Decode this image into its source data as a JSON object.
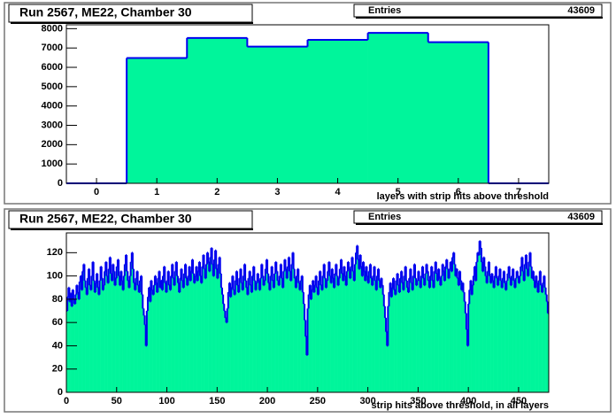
{
  "chart_data": [
    {
      "type": "histogram",
      "title": "Run 2567, ME22, Chamber 30",
      "stats": {
        "label": "Entries",
        "value": 43609
      },
      "xlabel": "layers with strip hits above threshold",
      "bins": [
        -0.5,
        0.5,
        1.5,
        2.5,
        3.5,
        4.5,
        5.5,
        6.5,
        7.5
      ],
      "values": [
        0,
        6480,
        7520,
        7070,
        7420,
        7780,
        7300,
        0
      ],
      "color": "#00f59b",
      "line_color": "#0000ee",
      "xlim": [
        -0.5,
        7.5
      ],
      "xticks": [
        0,
        1,
        2,
        3,
        4,
        5,
        6,
        7
      ],
      "ylim": [
        0,
        8200
      ],
      "yticks": [
        0,
        1000,
        2000,
        3000,
        4000,
        5000,
        6000,
        7000,
        8000
      ]
    },
    {
      "type": "histogram",
      "title": "Run 2567, ME22, Chamber 30",
      "stats": {
        "label": "Entries",
        "value": 43609
      },
      "xlabel": "strip hits above threshold, in all layers",
      "bins": [
        0,
        1,
        2,
        3,
        4,
        5,
        6,
        7,
        8,
        9,
        10,
        11,
        12,
        13,
        14,
        15,
        16,
        17,
        18,
        19,
        20,
        21,
        22,
        23,
        24,
        25,
        26,
        27,
        28,
        29,
        30,
        31,
        32,
        33,
        34,
        35,
        36,
        37,
        38,
        39,
        40,
        41,
        42,
        43,
        44,
        45,
        46,
        47,
        48,
        49,
        50,
        51,
        52,
        53,
        54,
        55,
        56,
        57,
        58,
        59,
        60,
        61,
        62,
        63,
        64,
        65,
        66,
        67,
        68,
        69,
        70,
        71,
        72,
        73,
        74,
        75,
        76,
        77,
        78,
        79,
        80,
        81,
        82,
        83,
        84,
        85,
        86,
        87,
        88,
        89,
        90,
        91,
        92,
        93,
        94,
        95,
        96,
        97,
        98,
        99,
        100,
        101,
        102,
        103,
        104,
        105,
        106,
        107,
        108,
        109,
        110,
        111,
        112,
        113,
        114,
        115,
        116,
        117,
        118,
        119,
        120,
        121,
        122,
        123,
        124,
        125,
        126,
        127,
        128,
        129,
        130,
        131,
        132,
        133,
        134,
        135,
        136,
        137,
        138,
        139,
        140,
        141,
        142,
        143,
        144,
        145,
        146,
        147,
        148,
        149,
        150,
        151,
        152,
        153,
        154,
        155,
        156,
        157,
        158,
        159,
        160,
        161,
        162,
        163,
        164,
        165,
        166,
        167,
        168,
        169,
        170,
        171,
        172,
        173,
        174,
        175,
        176,
        177,
        178,
        179,
        180,
        181,
        182,
        183,
        184,
        185,
        186,
        187,
        188,
        189,
        190,
        191,
        192,
        193,
        194,
        195,
        196,
        197,
        198,
        199,
        200,
        201,
        202,
        203,
        204,
        205,
        206,
        207,
        208,
        209,
        210,
        211,
        212,
        213,
        214,
        215,
        216,
        217,
        218,
        219,
        220,
        221,
        222,
        223,
        224,
        225,
        226,
        227,
        228,
        229,
        230,
        231,
        232,
        233,
        234,
        235,
        236,
        237,
        238,
        239,
        240,
        241,
        242,
        243,
        244,
        245,
        246,
        247,
        248,
        249,
        250,
        251,
        252,
        253,
        254,
        255,
        256,
        257,
        258,
        259,
        260,
        261,
        262,
        263,
        264,
        265,
        266,
        267,
        268,
        269,
        270,
        271,
        272,
        273,
        274,
        275,
        276,
        277,
        278,
        279,
        280,
        281,
        282,
        283,
        284,
        285,
        286,
        287,
        288,
        289,
        290,
        291,
        292,
        293,
        294,
        295,
        296,
        297,
        298,
        299,
        300,
        301,
        302,
        303,
        304,
        305,
        306,
        307,
        308,
        309,
        310,
        311,
        312,
        313,
        314,
        315,
        316,
        317,
        318,
        319,
        320,
        321,
        322,
        323,
        324,
        325,
        326,
        327,
        328,
        329,
        330,
        331,
        332,
        333,
        334,
        335,
        336,
        337,
        338,
        339,
        340,
        341,
        342,
        343,
        344,
        345,
        346,
        347,
        348,
        349,
        350,
        351,
        352,
        353,
        354,
        355,
        356,
        357,
        358,
        359,
        360,
        361,
        362,
        363,
        364,
        365,
        366,
        367,
        368,
        369,
        370,
        371,
        372,
        373,
        374,
        375,
        376,
        377,
        378,
        379,
        380,
        381,
        382,
        383,
        384,
        385,
        386,
        387,
        388,
        389,
        390,
        391,
        392,
        393,
        394,
        395,
        396,
        397,
        398,
        399,
        400,
        401,
        402,
        403,
        404,
        405,
        406,
        407,
        408,
        409,
        410,
        411,
        412,
        413,
        414,
        415,
        416,
        417,
        418,
        419,
        420,
        421,
        422,
        423,
        424,
        425,
        426,
        427,
        428,
        429,
        430,
        431,
        432,
        433,
        434,
        435,
        436,
        437,
        438,
        439,
        440,
        441,
        442,
        443,
        444,
        445,
        446,
        447,
        448,
        449,
        450,
        451,
        452,
        453,
        454,
        455,
        456,
        457,
        458,
        459,
        460,
        461,
        462,
        463,
        464,
        465,
        466,
        467,
        468,
        469,
        470,
        471,
        472,
        473,
        474,
        475,
        476,
        477,
        478,
        479,
        480
      ],
      "values": [
        70,
        82,
        90,
        78,
        85,
        74,
        88,
        80,
        76,
        84,
        92,
        86,
        80,
        95,
        100,
        88,
        104,
        110,
        96,
        90,
        84,
        98,
        106,
        92,
        88,
        100,
        112,
        96,
        86,
        94,
        102,
        90,
        84,
        96,
        108,
        98,
        88,
        92,
        104,
        112,
        100,
        94,
        106,
        116,
        102,
        96,
        110,
        104,
        92,
        98,
        108,
        114,
        100,
        92,
        104,
        96,
        88,
        100,
        110,
        118,
        104,
        96,
        90,
        100,
        112,
        120,
        106,
        94,
        88,
        98,
        104,
        92,
        86,
        96,
        100,
        84,
        72,
        66,
        58,
        40,
        70,
        82,
        90,
        78,
        96,
        88,
        84,
        92,
        100,
        94,
        86,
        98,
        104,
        90,
        96,
        88,
        100,
        108,
        94,
        86,
        96,
        104,
        92,
        88,
        100,
        110,
        98,
        92,
        104,
        112,
        100,
        94,
        86,
        98,
        106,
        96,
        90,
        102,
        110,
        98,
        92,
        100,
        108,
        96,
        104,
        114,
        102,
        94,
        100,
        108,
        96,
        104,
        112,
        100,
        94,
        108,
        118,
        106,
        98,
        110,
        120,
        112,
        104,
        116,
        124,
        110,
        100,
        114,
        122,
        106,
        98,
        110,
        116,
        102,
        90,
        84,
        76,
        70,
        64,
        60,
        72,
        86,
        94,
        82,
        90,
        100,
        88,
        84,
        96,
        104,
        92,
        86,
        98,
        106,
        94,
        88,
        100,
        110,
        96,
        90,
        84,
        98,
        104,
        92,
        86,
        100,
        108,
        96,
        88,
        94,
        102,
        96,
        88,
        98,
        110,
        100,
        92,
        96,
        106,
        114,
        102,
        94,
        88,
        100,
        108,
        96,
        90,
        102,
        112,
        104,
        96,
        92,
        100,
        110,
        98,
        90,
        104,
        114,
        106,
        98,
        108,
        116,
        104,
        96,
        110,
        120,
        106,
        98,
        90,
        100,
        106,
        94,
        88,
        96,
        100,
        86,
        76,
        62,
        48,
        32,
        72,
        84,
        92,
        80,
        88,
        96,
        86,
        92,
        100,
        90,
        84,
        96,
        104,
        92,
        88,
        100,
        110,
        98,
        90,
        96,
        104,
        112,
        100,
        94,
        106,
        98,
        90,
        102,
        110,
        100,
        92,
        98,
        106,
        114,
        102,
        96,
        108,
        100,
        92,
        104,
        112,
        106,
        98,
        108,
        116,
        104,
        96,
        110,
        120,
        126,
        114,
        106,
        118,
        108,
        100,
        112,
        104,
        96,
        108,
        100,
        94,
        104,
        110,
        98,
        92,
        100,
        108,
        96,
        88,
        100,
        106,
        96,
        90,
        98,
        92,
        84,
        74,
        64,
        52,
        40,
        74,
        86,
        94,
        82,
        90,
        98,
        88,
        84,
        96,
        102,
        92,
        86,
        98,
        104,
        94,
        88,
        100,
        108,
        96,
        90,
        86,
        98,
        106,
        94,
        88,
        100,
        110,
        98,
        92,
        96,
        104,
        96,
        90,
        100,
        108,
        98,
        92,
        102,
        110,
        104,
        96,
        90,
        100,
        108,
        96,
        90,
        104,
        112,
        102,
        96,
        106,
        98,
        92,
        100,
        110,
        104,
        96,
        108,
        114,
        106,
        98,
        106,
        112,
        104,
        116,
        120,
        110,
        100,
        106,
        98,
        92,
        104,
        96,
        88,
        94,
        86,
        78,
        68,
        54,
        40,
        76,
        88,
        96,
        84,
        92,
        100,
        108,
        96,
        112,
        120,
        118,
        130,
        124,
        112,
        104,
        116,
        108,
        100,
        94,
        104,
        112,
        100,
        94,
        102,
        96,
        90,
        100,
        108,
        98,
        92,
        100,
        106,
        96,
        90,
        98,
        104,
        94,
        88,
        96,
        102,
        108,
        98,
        92,
        100,
        106,
        96,
        90,
        98,
        104,
        100,
        94,
        100,
        108,
        116,
        104,
        96,
        110,
        118,
        106,
        100,
        112,
        120,
        108,
        98,
        104,
        96,
        90,
        100,
        94,
        86,
        96,
        104,
        92,
        86,
        94,
        100,
        90,
        84,
        78,
        68
      ],
      "color": "#00f59b",
      "line_color": "#0000ee",
      "xlim": [
        0,
        480
      ],
      "xticks": [
        0,
        50,
        100,
        150,
        200,
        250,
        300,
        350,
        400,
        450
      ],
      "ylim": [
        0,
        137
      ],
      "yticks": [
        0,
        20,
        40,
        60,
        80,
        100,
        120
      ]
    }
  ]
}
